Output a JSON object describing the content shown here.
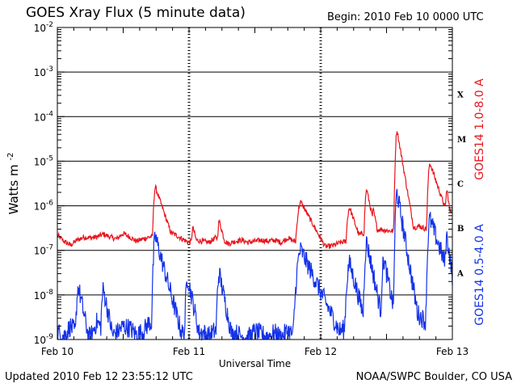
{
  "header": {
    "title": "GOES Xray Flux (5 minute data)",
    "begin": "Begin:  2010 Feb 10 0000 UTC"
  },
  "footer": {
    "updated": "Updated 2010 Feb 12 23:55:12 UTC",
    "credit": "NOAA/SWPC Boulder, CO USA"
  },
  "chart_data": {
    "type": "line",
    "title": "GOES Xray Flux (5 minute data)",
    "xlabel": "Universal Time",
    "ylabel": "Watts m",
    "ylabel_sup": "-2",
    "y_scale": "log",
    "ylim": [
      1e-09,
      0.01
    ],
    "xlim_days": [
      0,
      3
    ],
    "y_ticks": [
      {
        "exp": -9,
        "label_base": "10",
        "label_exp": "-9"
      },
      {
        "exp": -8,
        "label_base": "10",
        "label_exp": "-8"
      },
      {
        "exp": -7,
        "label_base": "10",
        "label_exp": "-7"
      },
      {
        "exp": -6,
        "label_base": "10",
        "label_exp": "-6"
      },
      {
        "exp": -5,
        "label_base": "10",
        "label_exp": "-5"
      },
      {
        "exp": -4,
        "label_base": "10",
        "label_exp": "-4"
      },
      {
        "exp": -3,
        "label_base": "10",
        "label_exp": "-3"
      },
      {
        "exp": -2,
        "label_base": "10",
        "label_exp": "-2"
      }
    ],
    "x_ticks": [
      {
        "day": 0,
        "label": "Feb 10"
      },
      {
        "day": 1,
        "label": "Feb 11"
      },
      {
        "day": 2,
        "label": "Feb 12"
      },
      {
        "day": 3,
        "label": "Feb 13"
      }
    ],
    "flare_classes": [
      {
        "label": "A",
        "exp": -8
      },
      {
        "label": "B",
        "exp": -7
      },
      {
        "label": "C",
        "exp": -6
      },
      {
        "label": "M",
        "exp": -5
      },
      {
        "label": "X",
        "exp": -4
      }
    ],
    "grid": true,
    "series": [
      {
        "name": "GOES14 1.0-8.0 A",
        "color": "#e8141c",
        "baseline": [
          [
            0.0,
            2.2e-07
          ],
          [
            0.05,
            1.6e-07
          ],
          [
            0.1,
            1.3e-07
          ],
          [
            0.15,
            1.7e-07
          ],
          [
            0.2,
            2e-07
          ],
          [
            0.25,
            1.9e-07
          ],
          [
            0.3,
            2e-07
          ],
          [
            0.35,
            2.3e-07
          ],
          [
            0.4,
            2e-07
          ],
          [
            0.45,
            1.8e-07
          ],
          [
            0.5,
            2.4e-07
          ],
          [
            0.55,
            2e-07
          ],
          [
            0.6,
            1.6e-07
          ],
          [
            0.65,
            1.8e-07
          ],
          [
            0.7,
            2e-07
          ],
          [
            0.75,
            2.1e-07
          ],
          [
            0.8,
            2.4e-07
          ],
          [
            0.85,
            2.6e-07
          ],
          [
            0.9,
            2.2e-07
          ],
          [
            0.95,
            1.8e-07
          ],
          [
            1.0,
            1.5e-07
          ],
          [
            1.05,
            1.7e-07
          ],
          [
            1.1,
            1.6e-07
          ],
          [
            1.15,
            1.5e-07
          ],
          [
            1.2,
            1.9e-07
          ],
          [
            1.25,
            1.8e-07
          ],
          [
            1.3,
            1.4e-07
          ],
          [
            1.35,
            1.6e-07
          ],
          [
            1.4,
            1.7e-07
          ],
          [
            1.45,
            1.5e-07
          ],
          [
            1.5,
            1.6e-07
          ],
          [
            1.55,
            1.7e-07
          ],
          [
            1.6,
            1.6e-07
          ],
          [
            1.65,
            1.7e-07
          ],
          [
            1.7,
            1.5e-07
          ],
          [
            1.75,
            1.9e-07
          ],
          [
            1.8,
            1.6e-07
          ],
          [
            1.85,
            1.4e-07
          ],
          [
            1.9,
            1.5e-07
          ],
          [
            1.95,
            1.3e-07
          ],
          [
            2.0,
            1.3e-07
          ],
          [
            2.05,
            1.2e-07
          ],
          [
            2.1,
            1.3e-07
          ],
          [
            2.15,
            1.5e-07
          ],
          [
            2.2,
            1.6e-07
          ],
          [
            2.25,
            2e-07
          ],
          [
            2.3,
            2.3e-07
          ],
          [
            2.35,
            2.5e-07
          ],
          [
            2.4,
            2.6e-07
          ],
          [
            2.45,
            3e-07
          ],
          [
            2.5,
            2.8e-07
          ],
          [
            2.55,
            2.7e-07
          ],
          [
            2.6,
            2.6e-07
          ],
          [
            2.65,
            2.9e-07
          ],
          [
            2.7,
            3.2e-07
          ],
          [
            2.75,
            3.5e-07
          ],
          [
            2.8,
            3e-07
          ],
          [
            2.85,
            2.8e-07
          ],
          [
            2.9,
            3.5e-07
          ],
          [
            2.95,
            6e-07
          ],
          [
            3.0,
            8e-07
          ]
        ],
        "peaks": [
          {
            "day": 0.745,
            "peak": 2.6e-06,
            "rise": 0.01,
            "decay": 0.05
          },
          {
            "day": 1.03,
            "peak": 3.2e-07,
            "rise": 0.01,
            "decay": 0.04
          },
          {
            "day": 1.23,
            "peak": 4.5e-07,
            "rise": 0.01,
            "decay": 0.04
          },
          {
            "day": 1.85,
            "peak": 1.2e-06,
            "rise": 0.02,
            "decay": 0.08
          },
          {
            "day": 2.22,
            "peak": 9e-07,
            "rise": 0.015,
            "decay": 0.05
          },
          {
            "day": 2.35,
            "peak": 2.3e-06,
            "rise": 0.01,
            "decay": 0.03
          },
          {
            "day": 2.4,
            "peak": 8e-07,
            "rise": 0.01,
            "decay": 0.03
          },
          {
            "day": 2.58,
            "peak": 5e-05,
            "rise": 0.008,
            "decay": 0.025
          },
          {
            "day": 2.83,
            "peak": 9e-06,
            "rise": 0.01,
            "decay": 0.05
          },
          {
            "day": 2.96,
            "peak": 2.2e-06,
            "rise": 0.01,
            "decay": 0.02
          }
        ]
      },
      {
        "name": "GOES14 0.5-4.0 A",
        "color": "#1432e8",
        "baseline": [
          [
            0.0,
            1.5e-09
          ],
          [
            0.05,
            1.2e-09
          ],
          [
            0.1,
            2e-09
          ],
          [
            0.15,
            1.3e-09
          ],
          [
            0.2,
            1.5e-09
          ],
          [
            0.25,
            1.1e-09
          ],
          [
            0.3,
            2.5e-09
          ],
          [
            0.35,
            1.6e-09
          ],
          [
            0.4,
            1.2e-09
          ],
          [
            0.45,
            1.4e-09
          ],
          [
            0.5,
            2e-09
          ],
          [
            0.55,
            1.8e-09
          ],
          [
            0.6,
            1.3e-09
          ],
          [
            0.65,
            1.5e-09
          ],
          [
            0.7,
            2.5e-09
          ],
          [
            0.75,
            1.6e-09
          ],
          [
            0.8,
            2.2e-09
          ],
          [
            0.85,
            3e-09
          ],
          [
            0.9,
            1.8e-09
          ],
          [
            0.95,
            1.4e-09
          ],
          [
            1.0,
            1.3e-09
          ],
          [
            1.05,
            1.2e-09
          ],
          [
            1.1,
            1.5e-09
          ],
          [
            1.15,
            1.2e-09
          ],
          [
            1.2,
            1.6e-09
          ],
          [
            1.25,
            1.3e-09
          ],
          [
            1.3,
            1.1e-09
          ],
          [
            1.35,
            1.4e-09
          ],
          [
            1.4,
            1.2e-09
          ],
          [
            1.45,
            1.1e-09
          ],
          [
            1.5,
            1.5e-09
          ],
          [
            1.55,
            1.3e-09
          ],
          [
            1.6,
            1.2e-09
          ],
          [
            1.65,
            1.4e-09
          ],
          [
            1.7,
            1.1e-09
          ],
          [
            1.75,
            1.6e-09
          ],
          [
            1.8,
            1.2e-09
          ],
          [
            1.85,
            1.3e-09
          ],
          [
            1.9,
            1.2e-09
          ],
          [
            1.95,
            1.1e-09
          ],
          [
            2.0,
            1.3e-09
          ],
          [
            2.05,
            1.2e-09
          ],
          [
            2.1,
            1.4e-09
          ],
          [
            2.15,
            1.6e-09
          ],
          [
            2.2,
            1.8e-09
          ],
          [
            2.25,
            2.5e-09
          ],
          [
            2.3,
            3e-09
          ],
          [
            2.35,
            4e-09
          ],
          [
            2.4,
            5e-09
          ],
          [
            2.45,
            4.5e-09
          ],
          [
            2.5,
            3.5e-09
          ],
          [
            2.55,
            4e-09
          ],
          [
            2.6,
            3e-09
          ],
          [
            2.65,
            4e-09
          ],
          [
            2.7,
            5e-09
          ],
          [
            2.75,
            3.5e-09
          ],
          [
            2.8,
            2.5e-09
          ],
          [
            2.85,
            4e-09
          ],
          [
            2.9,
            1.5e-09
          ],
          [
            2.95,
            3e-08
          ],
          [
            3.0,
            2.5e-08
          ]
        ],
        "peaks": [
          {
            "day": 0.16,
            "peak": 1.5e-08,
            "rise": 0.01,
            "decay": 0.03
          },
          {
            "day": 0.35,
            "peak": 1.3e-08,
            "rise": 0.01,
            "decay": 0.03
          },
          {
            "day": 0.745,
            "peak": 2e-07,
            "rise": 0.01,
            "decay": 0.04
          },
          {
            "day": 0.99,
            "peak": 2.5e-08,
            "rise": 0.01,
            "decay": 0.03
          },
          {
            "day": 1.23,
            "peak": 3e-08,
            "rise": 0.01,
            "decay": 0.03
          },
          {
            "day": 1.85,
            "peak": 1e-07,
            "rise": 0.02,
            "decay": 0.07
          },
          {
            "day": 2.22,
            "peak": 5e-08,
            "rise": 0.015,
            "decay": 0.04
          },
          {
            "day": 2.35,
            "peak": 1.5e-07,
            "rise": 0.01,
            "decay": 0.03
          },
          {
            "day": 2.48,
            "peak": 6e-08,
            "rise": 0.01,
            "decay": 0.03
          },
          {
            "day": 2.58,
            "peak": 2e-06,
            "rise": 0.008,
            "decay": 0.025
          },
          {
            "day": 2.83,
            "peak": 5e-07,
            "rise": 0.01,
            "decay": 0.05
          },
          {
            "day": 2.96,
            "peak": 2e-07,
            "rise": 0.01,
            "decay": 0.02
          }
        ]
      }
    ]
  }
}
